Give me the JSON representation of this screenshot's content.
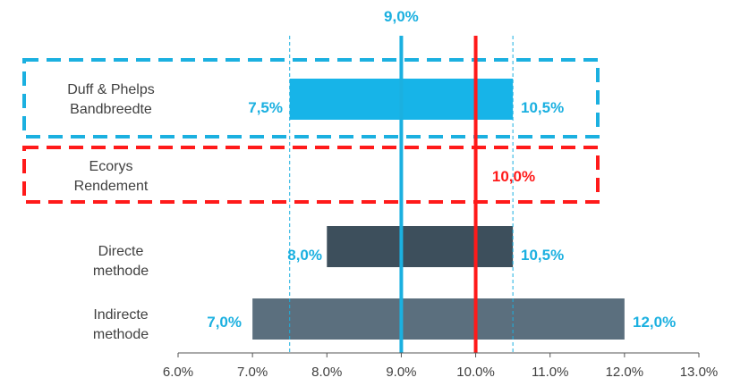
{
  "chart_data": {
    "type": "bar",
    "orientation": "horizontal-range",
    "xlim": [
      6.0,
      13.0
    ],
    "x_ticks": [
      "6.0%",
      "7.0%",
      "8.0%",
      "9.0%",
      "10.0%",
      "11.0%",
      "12.0%",
      "13.0%"
    ],
    "grid": false,
    "rows": [
      {
        "label": [
          "Duff & Phelps",
          "Bandbreedte"
        ],
        "start": 7.5,
        "end": 10.5,
        "start_label": "7,5%",
        "end_label": "10,5%",
        "color": "#17b4e8",
        "label_color": "#1bb0e0",
        "dashed_box": "#1bb0e0"
      },
      {
        "label": [
          "Ecorys",
          "Rendement"
        ],
        "start": null,
        "end": null,
        "value_label": "10,0%",
        "value_label_color": "#ff1a1a",
        "dashed_box": "#ff1a1a"
      },
      {
        "label": [
          "Directe",
          "methode"
        ],
        "start": 8.0,
        "end": 10.5,
        "start_label": "8,0%",
        "end_label": "10,5%",
        "color": "#3d4f5c",
        "label_color": "#1bb0e0"
      },
      {
        "label": [
          "Indirecte",
          "methode"
        ],
        "start": 7.0,
        "end": 12.0,
        "start_label": "7,0%",
        "end_label": "12,0%",
        "color": "#5b6f7e",
        "label_color": "#1bb0e0"
      }
    ],
    "reference_lines": [
      {
        "value": 9.0,
        "color": "#1bb0e0",
        "style": "solid",
        "label": "9,0%"
      },
      {
        "value": 10.0,
        "color": "#ff1a1a",
        "style": "solid"
      },
      {
        "value": 7.5,
        "color": "#1bb0e0",
        "style": "dashed"
      },
      {
        "value": 10.5,
        "color": "#1bb0e0",
        "style": "dashed"
      }
    ],
    "colors": {
      "accent_blue": "#1bb0e0",
      "accent_red": "#ff1a1a",
      "axis": "#333333",
      "text": "#404040"
    }
  }
}
